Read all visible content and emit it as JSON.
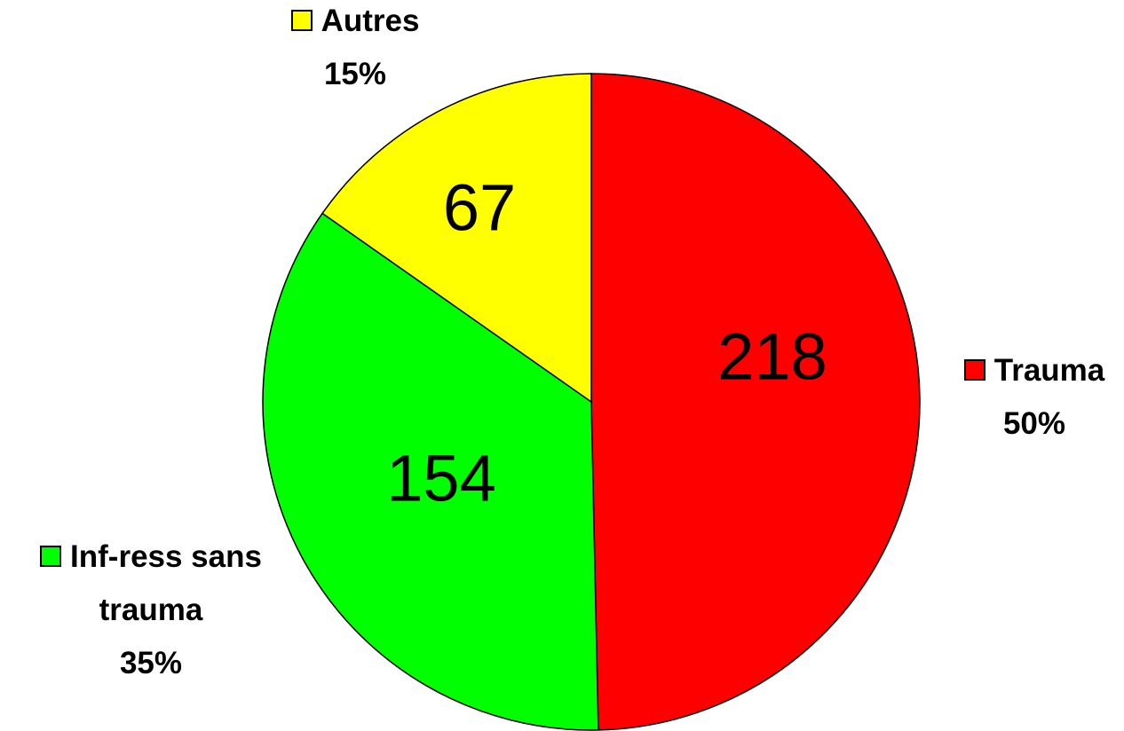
{
  "chart_data": {
    "type": "pie",
    "categories": [
      "Trauma",
      "Inf-ress sans trauma",
      "Autres"
    ],
    "values": [
      218,
      154,
      67
    ],
    "percent_labels": [
      "50%",
      "35%",
      "15%"
    ],
    "colors": [
      "#ff0000",
      "#00ff00",
      "#ffff00"
    ]
  }
}
